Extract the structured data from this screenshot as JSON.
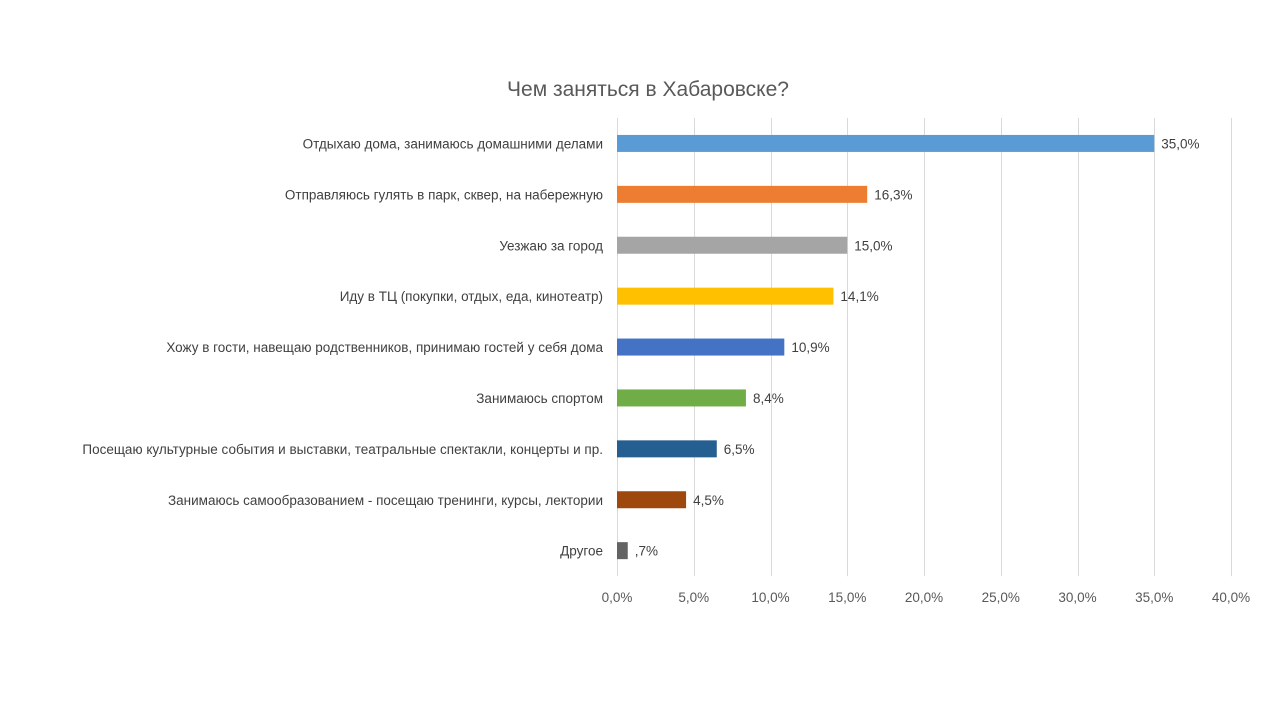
{
  "chart_data": {
    "type": "bar",
    "orientation": "horizontal",
    "title": "Чем заняться в Хабаровске?",
    "xlabel": "",
    "ylabel": "",
    "xlim": [
      0,
      40
    ],
    "grid": true,
    "legend": "none",
    "x_ticks": [
      0,
      5,
      10,
      15,
      20,
      25,
      30,
      35,
      40
    ],
    "x_tick_labels": [
      "0,0%",
      "5,0%",
      "10,0%",
      "15,0%",
      "20,0%",
      "25,0%",
      "30,0%",
      "35,0%",
      "40,0%"
    ],
    "categories": [
      "Отдыхаю дома, занимаюсь домашними делами",
      "Отправляюсь гулять в парк, сквер, на набережную",
      "Уезжаю за город",
      "Иду в ТЦ (покупки, отдых, еда, кинотеатр)",
      "Хожу в гости, навещаю родственников, принимаю гостей у себя дома",
      "Занимаюсь спортом",
      "Посещаю культурные события и выставки, театральные спектакли, концерты и пр.",
      "Занимаюсь самообразованием - посещаю тренинги, курсы, лектории",
      "Другое"
    ],
    "values": [
      35.0,
      16.3,
      15.0,
      14.1,
      10.9,
      8.4,
      6.5,
      4.5,
      0.7
    ],
    "value_labels": [
      "35,0%",
      "16,3%",
      "15,0%",
      "14,1%",
      "10,9%",
      "8,4%",
      "6,5%",
      "4,5%",
      ",7%"
    ],
    "colors": [
      "#5b9bd5",
      "#ed7d31",
      "#a5a5a5",
      "#ffc000",
      "#4472c4",
      "#70ad47",
      "#255e91",
      "#9e480e",
      "#636363"
    ]
  }
}
